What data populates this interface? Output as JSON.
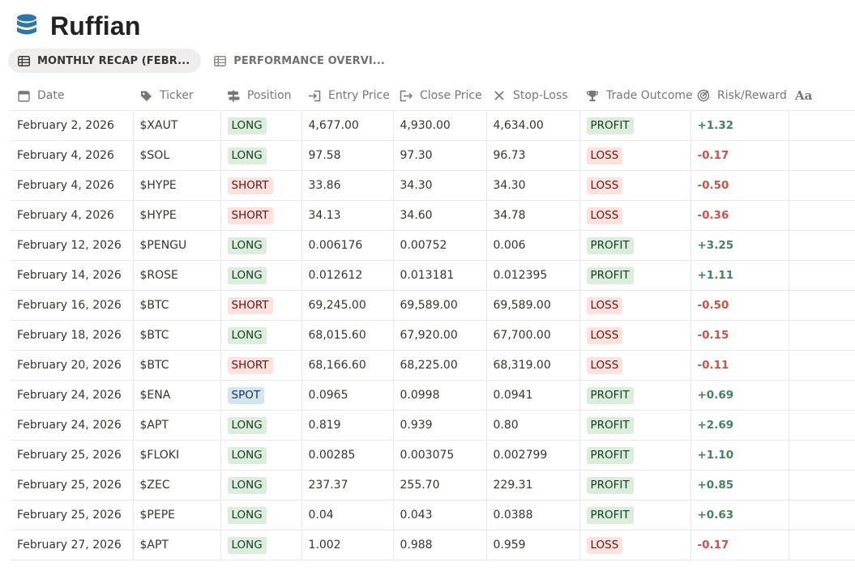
{
  "page": {
    "title": "Ruffian",
    "icon": "database-icon"
  },
  "tabs": [
    {
      "label": "MONTHLY RECAP (FEBR...",
      "icon": "table-icon",
      "active": true
    },
    {
      "label": "PERFORMANCE OVERVI...",
      "icon": "table-icon",
      "active": false
    }
  ],
  "columns": [
    {
      "key": "date",
      "label": "Date",
      "icon": "calendar-icon"
    },
    {
      "key": "ticker",
      "label": "Ticker",
      "icon": "tag-icon"
    },
    {
      "key": "position",
      "label": "Position",
      "icon": "select-icon"
    },
    {
      "key": "entry",
      "label": "Entry Price",
      "icon": "enter-icon"
    },
    {
      "key": "close",
      "label": "Close Price",
      "icon": "exit-icon"
    },
    {
      "key": "stop",
      "label": "Stop-Loss",
      "icon": "x-icon"
    },
    {
      "key": "outcome",
      "label": "Trade Outcome",
      "icon": "trophy-icon"
    },
    {
      "key": "rr",
      "label": "Risk/Reward",
      "icon": "target-icon"
    },
    {
      "key": "extra",
      "label": "",
      "icon": "text-property-icon"
    }
  ],
  "rows": [
    {
      "date": "February 2, 2026",
      "ticker": "$XAUT",
      "position": "LONG",
      "entry": "4,677.00",
      "close": "4,930.00",
      "stop": "4,634.00",
      "outcome": "PROFIT",
      "rr": "+1.32"
    },
    {
      "date": "February 4, 2026",
      "ticker": "$SOL",
      "position": "LONG",
      "entry": "97.58",
      "close": "97.30",
      "stop": "96.73",
      "outcome": "LOSS",
      "rr": "-0.17"
    },
    {
      "date": "February 4, 2026",
      "ticker": "$HYPE",
      "position": "SHORT",
      "entry": "33.86",
      "close": "34.30",
      "stop": "34.30",
      "outcome": "LOSS",
      "rr": "-0.50"
    },
    {
      "date": "February 4, 2026",
      "ticker": "$HYPE",
      "position": "SHORT",
      "entry": "34.13",
      "close": "34.60",
      "stop": "34.78",
      "outcome": "LOSS",
      "rr": "-0.36"
    },
    {
      "date": "February 12, 2026",
      "ticker": "$PENGU",
      "position": "LONG",
      "entry": "0.006176",
      "close": "0.00752",
      "stop": "0.006",
      "outcome": "PROFIT",
      "rr": "+3.25"
    },
    {
      "date": "February 14, 2026",
      "ticker": "$ROSE",
      "position": "LONG",
      "entry": "0.012612",
      "close": "0.013181",
      "stop": "0.012395",
      "outcome": "PROFIT",
      "rr": "+1.11"
    },
    {
      "date": "February 16, 2026",
      "ticker": "$BTC",
      "position": "SHORT",
      "entry": "69,245.00",
      "close": "69,589.00",
      "stop": "69,589.00",
      "outcome": "LOSS",
      "rr": "-0.50"
    },
    {
      "date": "February 18, 2026",
      "ticker": "$BTC",
      "position": "LONG",
      "entry": "68,015.60",
      "close": "67,920.00",
      "stop": "67,700.00",
      "outcome": "LOSS",
      "rr": "-0.15"
    },
    {
      "date": "February 20, 2026",
      "ticker": "$BTC",
      "position": "SHORT",
      "entry": "68,166.60",
      "close": "68,225.00",
      "stop": "68,319.00",
      "outcome": "LOSS",
      "rr": "-0.11"
    },
    {
      "date": "February 24, 2026",
      "ticker": "$ENA",
      "position": "SPOT",
      "entry": "0.0965",
      "close": "0.0998",
      "stop": "0.0941",
      "outcome": "PROFIT",
      "rr": "+0.69"
    },
    {
      "date": "February 24, 2026",
      "ticker": "$APT",
      "position": "LONG",
      "entry": "0.819",
      "close": "0.939",
      "stop": "0.80",
      "outcome": "PROFIT",
      "rr": "+2.69"
    },
    {
      "date": "February 25, 2026",
      "ticker": "$FLOKI",
      "position": "LONG",
      "entry": "0.00285",
      "close": "0.003075",
      "stop": "0.002799",
      "outcome": "PROFIT",
      "rr": "+1.10"
    },
    {
      "date": "February 25, 2026",
      "ticker": "$ZEC",
      "position": "LONG",
      "entry": "237.37",
      "close": "255.70",
      "stop": "229.31",
      "outcome": "PROFIT",
      "rr": "+0.85"
    },
    {
      "date": "February 25, 2026",
      "ticker": "$PEPE",
      "position": "LONG",
      "entry": "0.04",
      "close": "0.043",
      "stop": "0.0388",
      "outcome": "PROFIT",
      "rr": "+0.63"
    },
    {
      "date": "February 27, 2026",
      "ticker": "$APT",
      "position": "LONG",
      "entry": "1.002",
      "close": "0.988",
      "stop": "0.959",
      "outcome": "LOSS",
      "rr": "-0.17"
    }
  ],
  "colors": {
    "db_icon": "#2e75a8",
    "profit_text": "#448361",
    "loss_text": "#c4554d",
    "long_bg": "#dbeddb",
    "short_bg": "#ffe2dd",
    "spot_bg": "#d3e5ef"
  }
}
